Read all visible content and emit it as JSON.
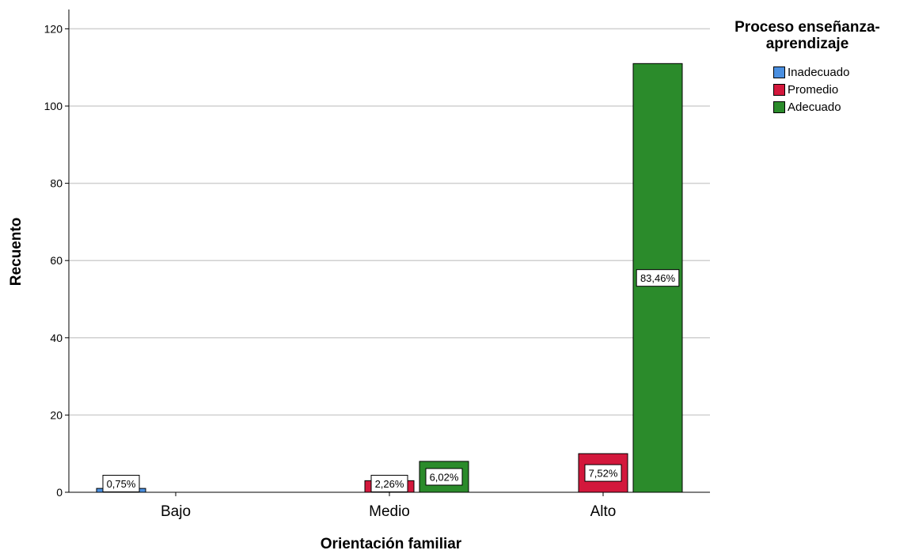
{
  "chart_data": {
    "type": "bar",
    "xlabel": "Orientación familiar",
    "ylabel": "Recuento",
    "ylim": [
      0,
      125
    ],
    "yticks": [
      0,
      20,
      40,
      60,
      80,
      100,
      120
    ],
    "grid": true,
    "categories": [
      "Bajo",
      "Medio",
      "Alto"
    ],
    "legend_title": "Proceso enseñanza-aprendizaje",
    "legend_position": "right",
    "series": [
      {
        "name": "Inadecuado",
        "color": "#4a8fe0",
        "values": [
          1,
          0,
          0
        ],
        "labels": [
          "0,75%",
          "",
          ""
        ]
      },
      {
        "name": "Promedio",
        "color": "#d3183c",
        "values": [
          0,
          3,
          10
        ],
        "labels": [
          "",
          "2,26%",
          "7,52%"
        ]
      },
      {
        "name": "Adecuado",
        "color": "#2b8b2b",
        "values": [
          0,
          8,
          111
        ],
        "labels": [
          "",
          "6,02%",
          "83,46%"
        ]
      }
    ]
  }
}
